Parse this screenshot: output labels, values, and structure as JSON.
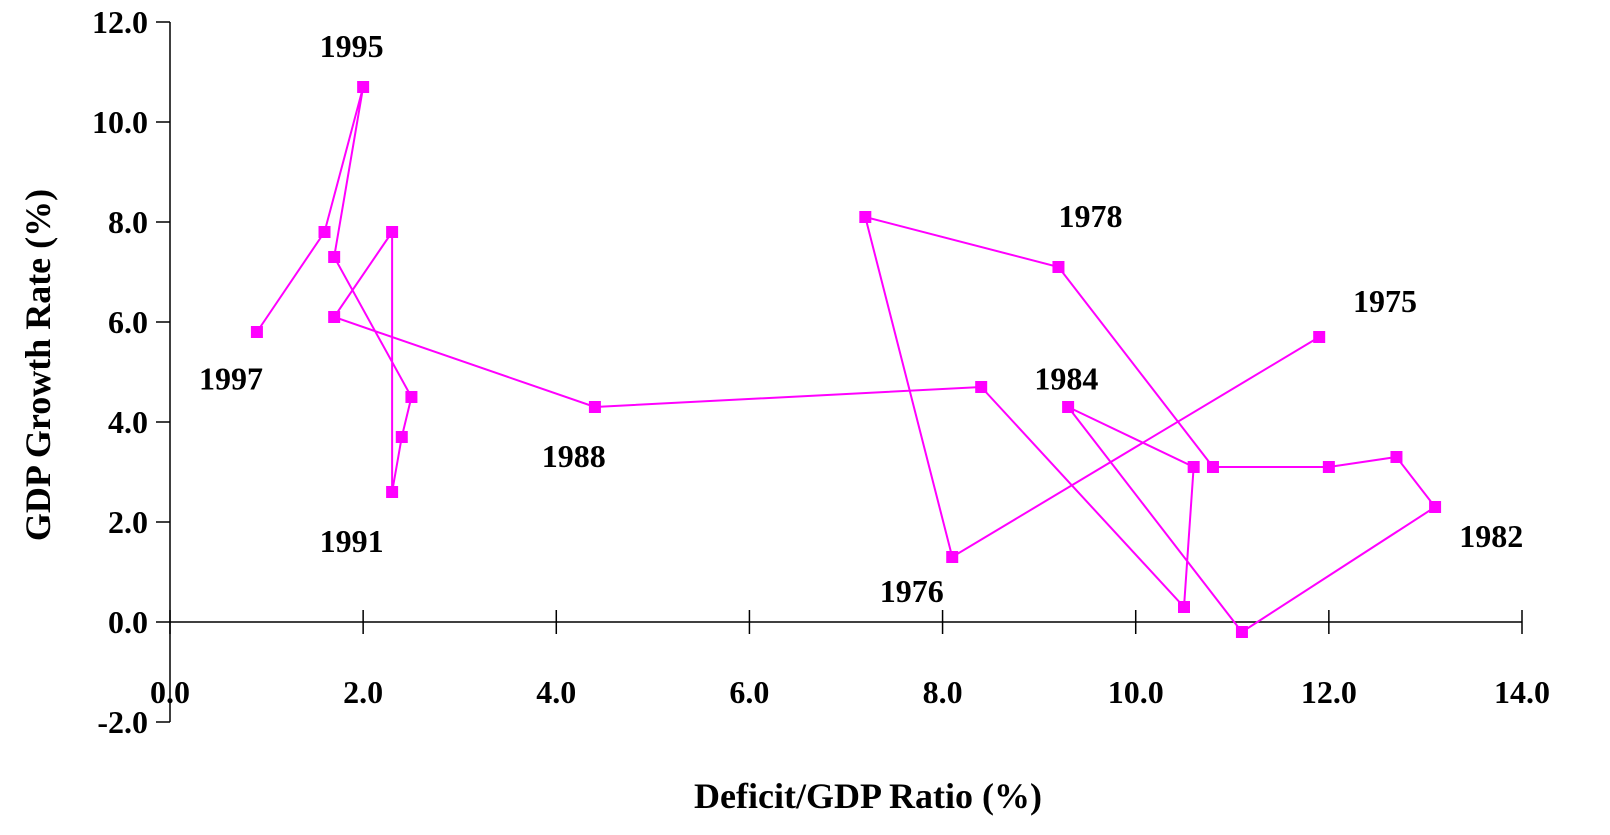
{
  "chart_data": {
    "type": "line",
    "xlabel": "Deficit/GDP Ratio (%)",
    "ylabel": "GDP Growth Rate (%)",
    "xlim": [
      0,
      14
    ],
    "ylim": [
      -2,
      12
    ],
    "x_ticks": [
      "0.0",
      "2.0",
      "4.0",
      "6.0",
      "8.0",
      "10.0",
      "12.0",
      "14.0"
    ],
    "y_ticks": [
      "-2.0",
      "0.0",
      "2.0",
      "4.0",
      "6.0",
      "8.0",
      "10.0",
      "12.0"
    ],
    "grid": false,
    "series_color": "#ff00ff",
    "marker": "square",
    "points": [
      {
        "x": 11.9,
        "y": 5.7
      },
      {
        "x": 8.1,
        "y": 1.3
      },
      {
        "x": 7.2,
        "y": 8.1
      },
      {
        "x": 9.2,
        "y": 7.1
      },
      {
        "x": 10.8,
        "y": 3.1
      },
      {
        "x": 12.0,
        "y": 3.1
      },
      {
        "x": 12.7,
        "y": 3.3
      },
      {
        "x": 13.1,
        "y": 2.3
      },
      {
        "x": 11.1,
        "y": -0.2
      },
      {
        "x": 9.3,
        "y": 4.3
      },
      {
        "x": 10.6,
        "y": 3.1
      },
      {
        "x": 10.5,
        "y": 0.3
      },
      {
        "x": 8.4,
        "y": 4.7
      },
      {
        "x": 4.4,
        "y": 4.3
      },
      {
        "x": 1.7,
        "y": 6.1
      },
      {
        "x": 2.3,
        "y": 7.8
      },
      {
        "x": 2.3,
        "y": 2.6
      },
      {
        "x": 2.4,
        "y": 3.7
      },
      {
        "x": 2.5,
        "y": 4.5
      },
      {
        "x": 1.7,
        "y": 7.3
      },
      {
        "x": 2.0,
        "y": 10.7
      },
      {
        "x": 1.6,
        "y": 7.8
      },
      {
        "x": 0.9,
        "y": 5.8
      }
    ],
    "annotations": [
      {
        "text": "1975",
        "x": 12.25,
        "y": 6.2
      },
      {
        "text": "1976",
        "x": 7.35,
        "y": 0.4
      },
      {
        "text": "1978",
        "x": 9.2,
        "y": 7.9
      },
      {
        "text": "1982",
        "x": 13.35,
        "y": 1.5
      },
      {
        "text": "1984",
        "x": 8.95,
        "y": 4.65
      },
      {
        "text": "1988",
        "x": 3.85,
        "y": 3.1
      },
      {
        "text": "1991",
        "x": 1.55,
        "y": 1.4
      },
      {
        "text": "1995",
        "x": 1.55,
        "y": 11.3
      },
      {
        "text": "1997",
        "x": 0.3,
        "y": 4.65
      }
    ]
  }
}
